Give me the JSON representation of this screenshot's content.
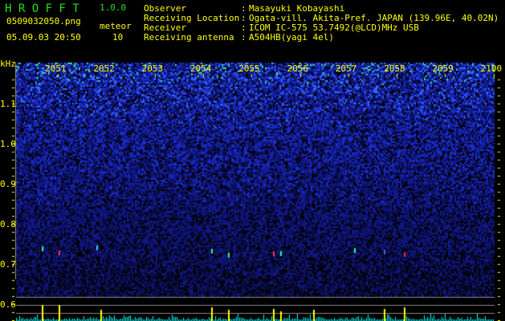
{
  "header": {
    "app_title": "H R O F F T",
    "version": "1.0.0",
    "filename": "0509032050.png",
    "datetime": "05.09.03 20:50",
    "meteor_label": "meteor",
    "meteor_count": "10"
  },
  "info": {
    "labels": [
      "Observer",
      "Receiving Location",
      "Receiver",
      "Receiving antenna"
    ],
    "values": [
      "Masayuki Kobayashi",
      "Ogata-vill. Akita-Pref. JAPAN (139.96E, 40.02N)",
      "ICOM IC-575 53.7492(@LCD)MHz USB",
      "A504HB(yagi 4el)"
    ]
  },
  "axis": {
    "y_unit": "kHz",
    "y_ticks": [
      "1.1",
      "1.0",
      "0.9",
      "0.8",
      "0.7",
      "0.6"
    ],
    "x_ticks": [
      "2051",
      "2052",
      "2053",
      "2054",
      "2055",
      "2056",
      "2057",
      "2058",
      "2059",
      "2100"
    ]
  },
  "colors": {
    "text": "#ffff00",
    "title": "#22dd22",
    "histogram": "#00ffff",
    "meteor_bar": "#ffff00"
  }
}
